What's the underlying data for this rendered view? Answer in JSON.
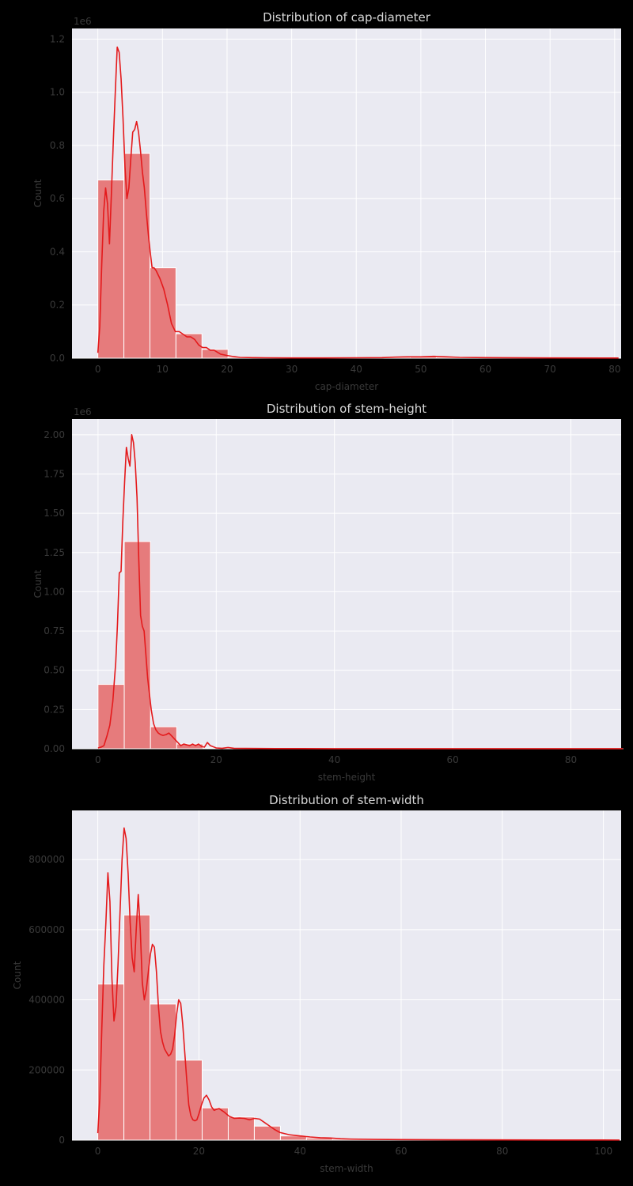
{
  "chart_data": [
    {
      "type": "bar",
      "title": "Distribution of cap-diameter",
      "xlabel": "cap-diameter",
      "ylabel": "Count",
      "offset_text": "1e6",
      "xlim": [
        -4,
        81
      ],
      "ylim": [
        0,
        1.24
      ],
      "xticks": [
        0,
        10,
        20,
        30,
        40,
        50,
        60,
        70,
        80
      ],
      "yticks": [
        0.0,
        0.2,
        0.4,
        0.6,
        0.8,
        1.0,
        1.2
      ],
      "ytick_labels": [
        "0.0",
        "0.2",
        "0.4",
        "0.6",
        "0.8",
        "1.0",
        "1.2"
      ],
      "bin_edges": [
        0,
        4.03,
        8.06,
        12.09,
        16.12,
        20.15,
        24.18,
        28.21,
        32.24,
        36.27,
        40.3,
        44.33,
        48.36,
        52.39,
        56.42,
        60.45,
        64.48,
        68.51,
        72.54,
        76.57,
        80.6
      ],
      "values": [
        0.67,
        0.77,
        0.34,
        0.092,
        0.033,
        0.004,
        0.0015,
        0.001,
        0.0008,
        0.0008,
        0.001,
        0.004,
        0.006,
        0.004,
        0.001,
        0.0005,
        0.0004,
        0.0003,
        0.0002,
        0.0002
      ],
      "kde": {
        "x": [
          0,
          0.3,
          0.6,
          0.9,
          1.2,
          1.5,
          1.8,
          2.1,
          2.4,
          2.7,
          3.0,
          3.3,
          3.6,
          3.9,
          4.2,
          4.5,
          4.8,
          5.1,
          5.4,
          5.7,
          6.0,
          6.3,
          6.6,
          6.9,
          7.2,
          7.5,
          7.8,
          8.1,
          8.4,
          8.7,
          9.0,
          9.6,
          10.2,
          10.8,
          11.4,
          12.0,
          12.6,
          13.2,
          13.8,
          14.4,
          15.0,
          15.6,
          16.2,
          16.8,
          17.4,
          18.0,
          19.0,
          20.0,
          21.0,
          22.0,
          24.0,
          26.0,
          30.0,
          35.0,
          40.0,
          44.0,
          46.0,
          48.0,
          50.0,
          52.0,
          54.0,
          56.0,
          60.0,
          70.0,
          80.6
        ],
        "y": [
          0.02,
          0.12,
          0.35,
          0.55,
          0.64,
          0.58,
          0.43,
          0.62,
          0.82,
          1.0,
          1.17,
          1.15,
          1.05,
          0.9,
          0.72,
          0.6,
          0.64,
          0.75,
          0.85,
          0.86,
          0.89,
          0.85,
          0.78,
          0.7,
          0.64,
          0.55,
          0.47,
          0.4,
          0.34,
          0.34,
          0.33,
          0.3,
          0.26,
          0.2,
          0.13,
          0.1,
          0.1,
          0.09,
          0.08,
          0.08,
          0.07,
          0.05,
          0.04,
          0.04,
          0.03,
          0.03,
          0.015,
          0.01,
          0.006,
          0.003,
          0.002,
          0.0015,
          0.001,
          0.001,
          0.0015,
          0.002,
          0.004,
          0.005,
          0.005,
          0.007,
          0.005,
          0.003,
          0.002,
          0.001,
          0.0005
        ]
      }
    },
    {
      "type": "bar",
      "title": "Distribution of stem-height",
      "xlabel": "stem-height",
      "ylabel": "Count",
      "offset_text": "1e6",
      "xlim": [
        -4.4,
        88.5
      ],
      "ylim": [
        0,
        2.1
      ],
      "xticks": [
        0,
        20,
        40,
        60,
        80
      ],
      "yticks": [
        0.0,
        0.25,
        0.5,
        0.75,
        1.0,
        1.25,
        1.5,
        1.75,
        2.0
      ],
      "ytick_labels": [
        "0.00",
        "0.25",
        "0.50",
        "0.75",
        "1.00",
        "1.25",
        "1.50",
        "1.75",
        "2.00"
      ],
      "bin_edges": [
        0,
        4.44,
        8.88,
        13.32,
        17.76,
        22.2,
        26.64,
        31.08,
        35.52,
        39.96,
        44.4,
        48.84,
        53.28,
        57.72,
        62.16,
        66.6,
        71.04,
        75.48,
        79.92,
        84.36,
        88.8
      ],
      "values": [
        0.41,
        1.32,
        0.14,
        0.03,
        0.005,
        0.002,
        0.001,
        0.0008,
        0.0006,
        0.0005,
        0.0004,
        0.0003,
        0.0003,
        0.0002,
        0.0002,
        0.0002,
        0.0001,
        0.0001,
        0.0001,
        0.0001
      ],
      "kde": {
        "x": [
          0,
          0.5,
          1.0,
          1.5,
          2.0,
          2.5,
          3.0,
          3.3,
          3.6,
          3.9,
          4.2,
          4.5,
          4.8,
          5.1,
          5.4,
          5.7,
          6.0,
          6.3,
          6.6,
          6.9,
          7.2,
          7.5,
          7.8,
          8.1,
          8.4,
          8.7,
          9.0,
          9.4,
          9.8,
          10.2,
          10.6,
          11.0,
          11.5,
          12.0,
          12.5,
          13.0,
          13.5,
          14.0,
          14.5,
          15.0,
          15.5,
          16.0,
          16.5,
          17.0,
          17.5,
          18.0,
          18.5,
          19.0,
          20.0,
          21.0,
          22.0,
          23.0,
          25.0,
          30.0,
          40.0,
          60.0,
          88.8
        ],
        "y": [
          0.005,
          0.01,
          0.02,
          0.08,
          0.15,
          0.3,
          0.55,
          0.8,
          1.12,
          1.13,
          1.45,
          1.7,
          1.92,
          1.85,
          1.8,
          2.0,
          1.95,
          1.82,
          1.6,
          1.2,
          0.85,
          0.78,
          0.75,
          0.6,
          0.45,
          0.35,
          0.25,
          0.16,
          0.12,
          0.1,
          0.09,
          0.085,
          0.09,
          0.1,
          0.08,
          0.06,
          0.04,
          0.02,
          0.03,
          0.025,
          0.02,
          0.03,
          0.02,
          0.03,
          0.015,
          0.01,
          0.04,
          0.02,
          0.005,
          0.003,
          0.008,
          0.003,
          0.002,
          0.001,
          0.0005,
          0.0002,
          0.0001
        ]
      }
    },
    {
      "type": "bar",
      "title": "Distribution of stem-width",
      "xlabel": "stem-width",
      "ylabel": "Count",
      "offset_text": "",
      "xlim": [
        -5.1,
        103.5
      ],
      "ylim": [
        0,
        940000
      ],
      "xticks": [
        0,
        20,
        40,
        60,
        80,
        100
      ],
      "yticks": [
        0,
        200000,
        400000,
        600000,
        800000
      ],
      "ytick_labels": [
        "0",
        "200000",
        "400000",
        "600000",
        "800000"
      ],
      "bin_edges": [
        0,
        5.16,
        10.32,
        15.48,
        20.64,
        25.8,
        30.96,
        36.12,
        41.28,
        46.44,
        51.6,
        56.76,
        61.92,
        67.08,
        72.24,
        77.4,
        82.56,
        87.72,
        92.88,
        98.04,
        103.2
      ],
      "values": [
        445000,
        642000,
        388000,
        228000,
        92000,
        66000,
        40000,
        12000,
        6000,
        3000,
        2000,
        1500,
        1000,
        800,
        600,
        400,
        300,
        200,
        200,
        100
      ],
      "kde": {
        "x": [
          0,
          0.4,
          0.8,
          1.2,
          1.6,
          2.0,
          2.4,
          2.8,
          3.2,
          3.6,
          4.0,
          4.4,
          4.8,
          5.2,
          5.6,
          6.0,
          6.4,
          6.8,
          7.2,
          7.6,
          8.0,
          8.4,
          8.8,
          9.2,
          9.6,
          10.0,
          10.4,
          10.8,
          11.2,
          11.6,
          12.0,
          12.4,
          12.8,
          13.2,
          13.6,
          14.0,
          14.4,
          14.8,
          15.2,
          15.6,
          16.0,
          16.4,
          16.8,
          17.2,
          17.6,
          18.0,
          18.4,
          18.8,
          19.2,
          19.6,
          20.0,
          20.5,
          21.0,
          21.5,
          22.0,
          22.5,
          23.0,
          23.5,
          24.0,
          24.5,
          25.0,
          26.0,
          27.0,
          28.0,
          29.0,
          30.0,
          31.0,
          32.0,
          33.0,
          34.0,
          35.0,
          36.0,
          38.0,
          40.0,
          42.0,
          44.0,
          46.0,
          48.0,
          50.0,
          55.0,
          60.0,
          70.0,
          80.0,
          90.0,
          103.2
        ],
        "y": [
          20000,
          120000,
          320000,
          500000,
          620000,
          762000,
          680000,
          460000,
          340000,
          380000,
          500000,
          650000,
          800000,
          890000,
          860000,
          760000,
          620000,
          520000,
          480000,
          600000,
          700000,
          600000,
          450000,
          400000,
          430000,
          480000,
          530000,
          558000,
          550000,
          480000,
          380000,
          310000,
          280000,
          260000,
          250000,
          240000,
          245000,
          260000,
          300000,
          360000,
          400000,
          390000,
          330000,
          250000,
          170000,
          100000,
          70000,
          58000,
          55000,
          58000,
          75000,
          100000,
          120000,
          128000,
          115000,
          95000,
          85000,
          88000,
          90000,
          85000,
          80000,
          68000,
          62000,
          63000,
          62000,
          58000,
          62000,
          60000,
          50000,
          40000,
          30000,
          22000,
          15000,
          12000,
          9000,
          7000,
          6000,
          4000,
          3000,
          2000,
          1500,
          1000,
          700,
          500,
          300
        ]
      }
    }
  ]
}
